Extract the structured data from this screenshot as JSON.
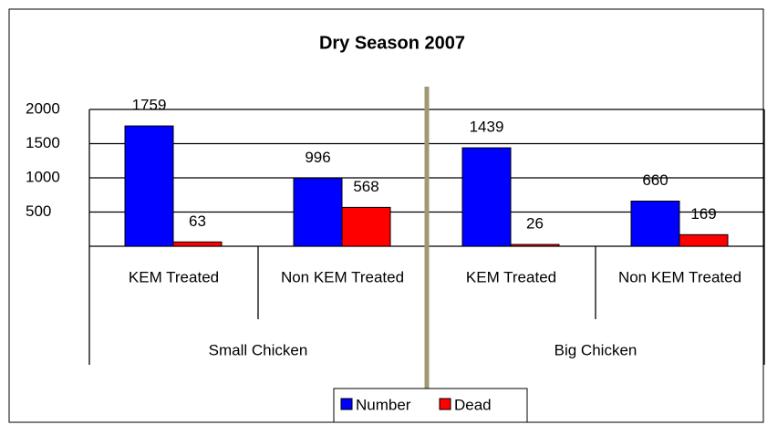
{
  "chart_data": {
    "type": "bar",
    "title": "Dry Season 2007",
    "categories": [
      "KEM  Treated",
      "Non KEM Treated",
      "KEM Treated",
      "Non KEM Treated"
    ],
    "groups": [
      "Small Chicken",
      "Big Chicken"
    ],
    "series": [
      {
        "name": "Number",
        "color": "#0000ff",
        "values": [
          1759,
          996,
          1439,
          660
        ]
      },
      {
        "name": "Dead",
        "color": "#ff0000",
        "values": [
          63,
          568,
          26,
          169
        ]
      }
    ],
    "ylim": [
      0,
      2000
    ],
    "yticks": [
      500,
      1000,
      1500,
      2000
    ],
    "grid": true,
    "legend": "bottom"
  }
}
